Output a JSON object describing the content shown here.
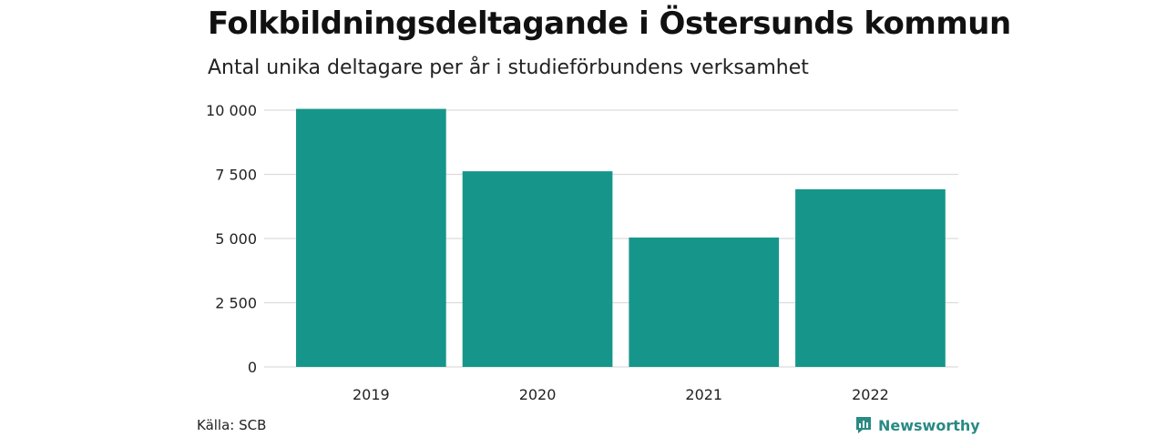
{
  "title": "Folkbildningsdeltagande i Östersunds kommun",
  "subtitle": "Antal unika deltagare per år i studieförbundens verksamhet",
  "source": "Källa: SCB",
  "brand": "Newsworthy",
  "colors": {
    "bar": "#16968a",
    "grid": "#dcdcdc",
    "brand": "#2a8a84"
  },
  "chart_data": {
    "type": "bar",
    "categories": [
      "2019",
      "2020",
      "2021",
      "2022"
    ],
    "values": [
      10050,
      7620,
      5040,
      6920
    ],
    "ylim": [
      0,
      10000
    ],
    "yticks": [
      0,
      2500,
      5000,
      7500,
      10000
    ],
    "ytick_labels": [
      "0",
      "2 500",
      "5 000",
      "7 500",
      "10 000"
    ],
    "grid": true
  }
}
